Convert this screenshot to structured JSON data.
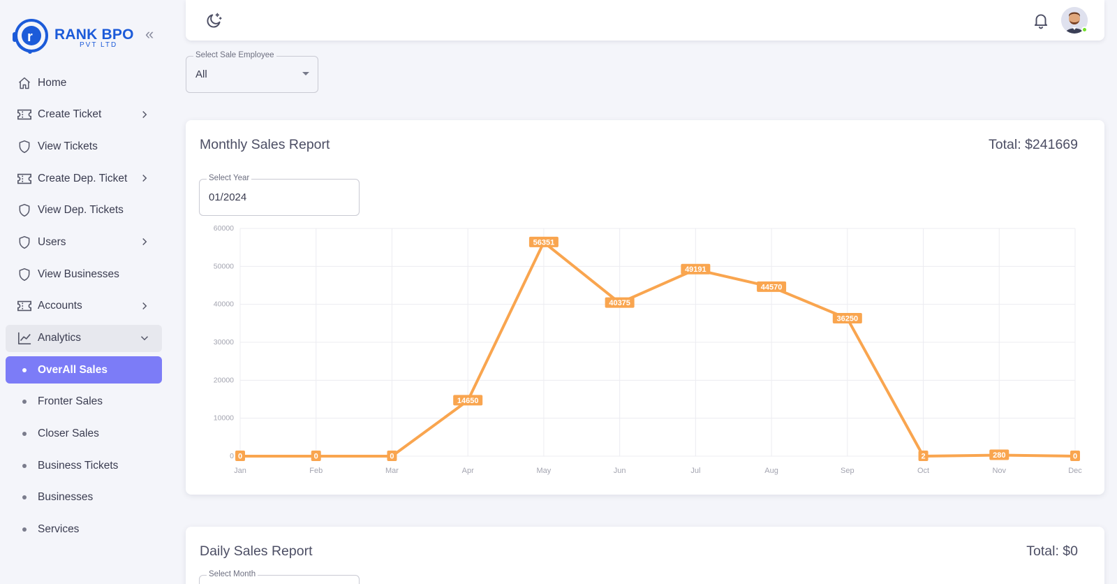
{
  "brand": {
    "name": "RANK BPO",
    "sub": "PVT LTD",
    "collapse_icon": "«"
  },
  "sidebar": {
    "items": [
      {
        "label": "Home",
        "icon": "home-icon"
      },
      {
        "label": "Create Ticket",
        "icon": "ticket-icon",
        "chevron": "right"
      },
      {
        "label": "View Tickets",
        "icon": "shield-icon"
      },
      {
        "label": "Create Dep. Ticket",
        "icon": "ticket-icon",
        "chevron": "right"
      },
      {
        "label": "View Dep. Tickets",
        "icon": "shield-icon"
      },
      {
        "label": "Users",
        "icon": "shield-icon",
        "chevron": "right"
      },
      {
        "label": "View Businesses",
        "icon": "shield-icon"
      },
      {
        "label": "Accounts",
        "icon": "ticket-icon",
        "chevron": "right"
      },
      {
        "label": "Analytics",
        "icon": "chart-line-icon",
        "chevron": "down"
      }
    ],
    "sub_items": [
      {
        "label": "OverAll Sales",
        "active": true
      },
      {
        "label": "Fronter Sales"
      },
      {
        "label": "Closer Sales"
      },
      {
        "label": "Business Tickets"
      },
      {
        "label": "Businesses"
      },
      {
        "label": "Services"
      }
    ]
  },
  "filters": {
    "employee_label": "Select Sale Employee",
    "employee_value": "All"
  },
  "monthly": {
    "title": "Monthly Sales Report",
    "total": "Total: $241669",
    "year_label": "Select Year",
    "year_value": "01/2024"
  },
  "daily": {
    "title": "Daily Sales Report",
    "total": "Total: $0",
    "month_label": "Select Month"
  },
  "chart_data": {
    "type": "line",
    "categories": [
      "Jan",
      "Feb",
      "Mar",
      "Apr",
      "May",
      "Jun",
      "Jul",
      "Aug",
      "Sep",
      "Oct",
      "Nov",
      "Dec"
    ],
    "values": [
      0,
      0,
      0,
      14650,
      56351,
      40375,
      49191,
      44570,
      36250,
      2,
      280,
      0
    ],
    "ylim": [
      0,
      60000
    ],
    "yticks": [
      0,
      10000,
      20000,
      30000,
      40000,
      50000,
      60000
    ],
    "grid": true,
    "color": "#f9a54f",
    "data_labels": true
  }
}
